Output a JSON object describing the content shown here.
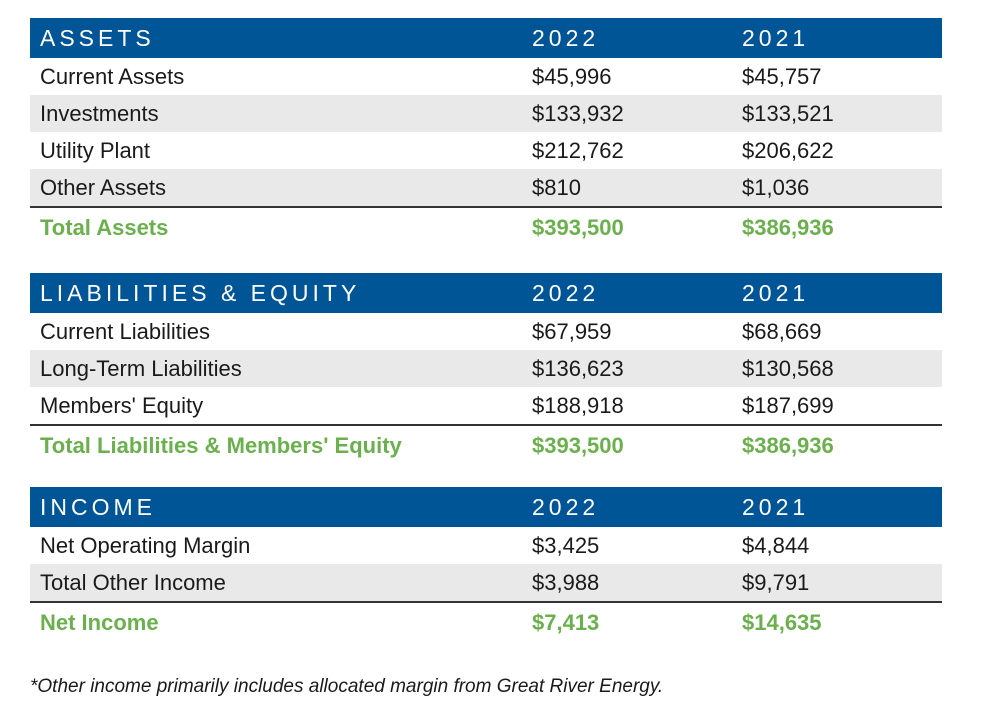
{
  "assets": {
    "heading": "ASSETS",
    "col_2022": "2022",
    "col_2021": "2021",
    "rows": [
      {
        "label": "Current Assets",
        "v2022": "$45,996",
        "v2021": "$45,757"
      },
      {
        "label": "Investments",
        "v2022": "$133,932",
        "v2021": "$133,521"
      },
      {
        "label": "Utility Plant",
        "v2022": "$212,762",
        "v2021": "$206,622"
      },
      {
        "label": "Other Assets",
        "v2022": "$810",
        "v2021": "$1,036"
      }
    ],
    "total": {
      "label": "Total Assets",
      "v2022": "$393,500",
      "v2021": "$386,936"
    }
  },
  "liabilities": {
    "heading": "LIABILITIES & EQUITY",
    "col_2022": "2022",
    "col_2021": "2021",
    "rows": [
      {
        "label": "Current Liabilities",
        "v2022": "$67,959",
        "v2021": "$68,669"
      },
      {
        "label": "Long-Term Liabilities",
        "v2022": "$136,623",
        "v2021": "$130,568"
      },
      {
        "label": "Members' Equity",
        "v2022": "$188,918",
        "v2021": "$187,699"
      }
    ],
    "total": {
      "label": "Total Liabilities & Members' Equity",
      "v2022": "$393,500",
      "v2021": "$386,936"
    }
  },
  "income": {
    "heading": "INCOME",
    "col_2022": "2022",
    "col_2021": "2021",
    "rows": [
      {
        "label": "Net Operating Margin",
        "v2022": "$3,425",
        "v2021": "$4,844"
      },
      {
        "label": "Total Other Income",
        "v2022": "$3,988",
        "v2021": "$9,791"
      }
    ],
    "total": {
      "label": "Net Income",
      "v2022": "$7,413",
      "v2021": "$14,635"
    }
  },
  "footnote": "*Other income primarily includes allocated margin from Great River Energy.",
  "colors": {
    "header_blue": "#005596",
    "total_green": "#6ab04c",
    "row_shade": "#e9e9e9"
  }
}
